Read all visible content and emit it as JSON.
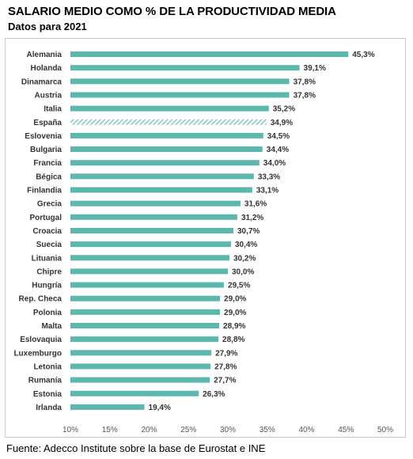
{
  "header": {
    "title": "SALARIO MEDIO COMO % DE LA PRODUCTIVIDAD MEDIA",
    "subtitle": "Datos para 2021"
  },
  "footer": {
    "source": "Fuente: Adecco Institute sobre la base de Eurostat e INE"
  },
  "colors": {
    "bar": "#5cb8ac",
    "highlight_hatch": "#5cb8ac"
  },
  "chart_data": {
    "type": "bar",
    "orientation": "horizontal",
    "title": "SALARIO MEDIO COMO % DE LA PRODUCTIVIDAD MEDIA",
    "subtitle": "Datos para 2021",
    "categories": [
      "Alemania",
      "Holanda",
      "Dinamarca",
      "Austria",
      "Italia",
      "España",
      "Eslovenia",
      "Bulgaria",
      "Francia",
      "Bégica",
      "Finlandia",
      "Grecia",
      "Portugal",
      "Croacia",
      "Suecia",
      "Lituania",
      "Chipre",
      "Hungría",
      "Rep. Checa",
      "Polonia",
      "Malta",
      "Eslovaquia",
      "Luxemburgo",
      "Letonia",
      "Rumanía",
      "Estonia",
      "Irlanda"
    ],
    "values": [
      45.3,
      39.1,
      37.8,
      37.8,
      35.2,
      34.9,
      34.5,
      34.4,
      34.0,
      33.3,
      33.1,
      31.6,
      31.2,
      30.7,
      30.4,
      30.2,
      30.0,
      29.5,
      29.0,
      29.0,
      28.9,
      28.8,
      27.9,
      27.8,
      27.7,
      26.3,
      19.4
    ],
    "value_labels": [
      "45,3%",
      "39,1%",
      "37,8%",
      "37,8%",
      "35,2%",
      "34,9%",
      "34,5%",
      "34,4%",
      "34,0%",
      "33,3%",
      "33,1%",
      "31,6%",
      "31,2%",
      "30,7%",
      "30,4%",
      "30,2%",
      "30,0%",
      "29,5%",
      "29,0%",
      "29,0%",
      "28,9%",
      "28,8%",
      "27,9%",
      "27,8%",
      "27,7%",
      "26,3%",
      "19,4%"
    ],
    "highlight_category": "España",
    "highlight_style": "hatched",
    "xlim": [
      10,
      50
    ],
    "x_ticks": [
      10,
      15,
      20,
      25,
      30,
      35,
      40,
      45,
      50
    ],
    "x_tick_labels": [
      "10%",
      "15%",
      "20%",
      "25%",
      "30%",
      "35%",
      "40%",
      "45%",
      "50%"
    ],
    "grid": false,
    "legend": "none",
    "xlabel": "",
    "ylabel": ""
  }
}
